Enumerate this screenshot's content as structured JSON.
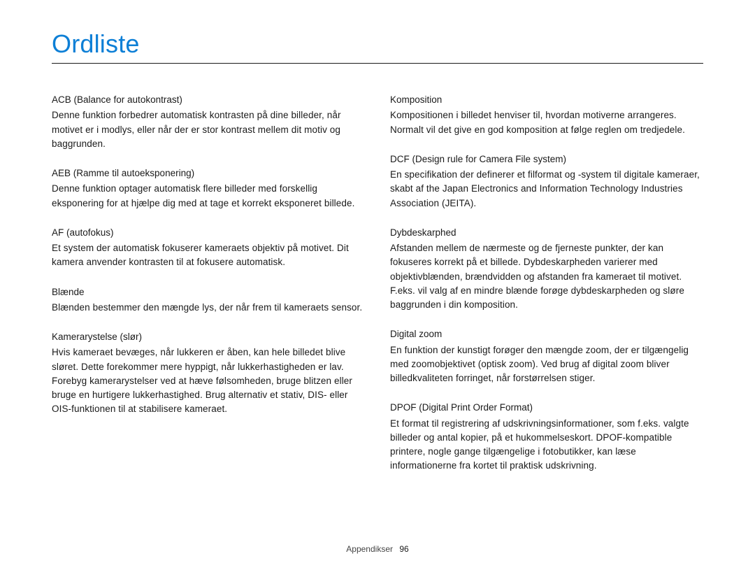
{
  "title": "Ordliste",
  "footer": {
    "section": "Appendikser",
    "page": "96"
  },
  "colors": {
    "title": "#0d7fd6",
    "text": "#1a1a1a",
    "background": "#ffffff"
  },
  "left": [
    {
      "term": "ACB (Balance for autokontrast)",
      "def": "Denne funktion forbedrer automatisk kontrasten på dine billeder, når motivet er i modlys, eller når der er stor kontrast mellem dit motiv og baggrunden."
    },
    {
      "term": "AEB (Ramme til autoeksponering)",
      "def": "Denne funktion optager automatisk flere billeder med forskellig eksponering for at hjælpe dig med at tage et korrekt eksponeret billede."
    },
    {
      "term": "AF (autofokus)",
      "def": "Et system der automatisk fokuserer kameraets objektiv på motivet. Dit kamera anvender kontrasten til at fokusere automatisk."
    },
    {
      "term": "Blænde",
      "def": "Blænden bestemmer den mængde lys, der når frem til kameraets sensor."
    },
    {
      "term": "Kamerarystelse (slør)",
      "def": "Hvis kameraet bevæges, når lukkeren er åben, kan hele billedet blive sløret. Dette forekommer mere hyppigt, når lukkerhastigheden er lav. Forebyg kamerarystelser ved at hæve følsomheden, bruge blitzen eller bruge en hurtigere lukkerhastighed. Brug alternativ et stativ, DIS- eller OIS-funktionen til at stabilisere kameraet."
    }
  ],
  "right": [
    {
      "term": "Komposition",
      "def": "Kompositionen i billedet henviser til, hvordan motiverne arrangeres. Normalt vil det give en god komposition at følge reglen om tredjedele."
    },
    {
      "term": "DCF (Design rule for Camera File system)",
      "def": "En specifikation der definerer et filformat og -system til digitale kameraer, skabt af the Japan Electronics and Information Technology Industries Association (JEITA)."
    },
    {
      "term": "Dybdeskarphed",
      "def": "Afstanden mellem de nærmeste og de fjerneste punkter, der kan fokuseres korrekt på et billede. Dybdeskarpheden varierer med objektivblænden, brændvidden og afstanden fra kameraet til motivet. F.eks. vil valg af en mindre blænde forøge dybdeskarpheden og sløre baggrunden i din komposition."
    },
    {
      "term": "Digital zoom",
      "def": "En funktion der kunstigt forøger den mængde zoom, der er tilgængelig med zoomobjektivet (optisk zoom). Ved brug af digital zoom bliver billedkvaliteten forringet, når forstørrelsen stiger."
    },
    {
      "term": "DPOF (Digital Print Order Format)",
      "def": "Et format til registrering af udskrivningsinformationer, som f.eks. valgte billeder og antal kopier, på et hukommelseskort. DPOF-kompatible printere, nogle gange tilgængelige i fotobutikker, kan læse informationerne fra kortet til praktisk udskrivning."
    }
  ]
}
